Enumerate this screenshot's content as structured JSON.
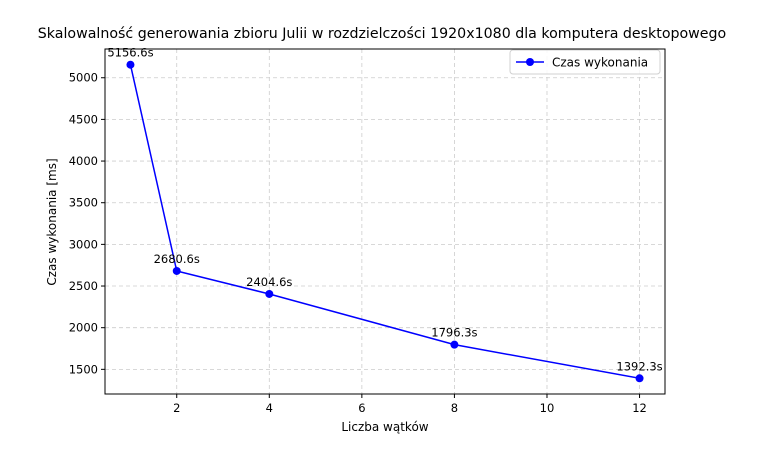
{
  "chart_data": {
    "type": "line",
    "title": "Skalowalność generowania zbioru Julii w rozdzielczości 1920x1080 dla komputera desktopowego",
    "xlabel": "Liczba wątków",
    "ylabel": "Czas wykonania [ms]",
    "xlim": [
      0.45,
      12.55
    ],
    "ylim": [
      1204,
      5345
    ],
    "x_ticks": [
      "2",
      "4",
      "6",
      "8",
      "10",
      "12"
    ],
    "y_ticks": [
      "1500",
      "2000",
      "2500",
      "3000",
      "3500",
      "4000",
      "4500",
      "5000"
    ],
    "grid": true,
    "legend": {
      "placement": "top-right",
      "entries": [
        "Czas wykonania"
      ]
    },
    "colors": {
      "series": "#0000ff",
      "grid": "#cccccc"
    },
    "series": [
      {
        "name": "Czas wykonania",
        "x": [
          1,
          2,
          4,
          8,
          12
        ],
        "y": [
          5156.6,
          2680.6,
          2404.6,
          1796.3,
          1392.3
        ],
        "labels": [
          "5156.6s",
          "2680.6s",
          "2404.6s",
          "1796.3s",
          "1392.3s"
        ]
      }
    ]
  }
}
